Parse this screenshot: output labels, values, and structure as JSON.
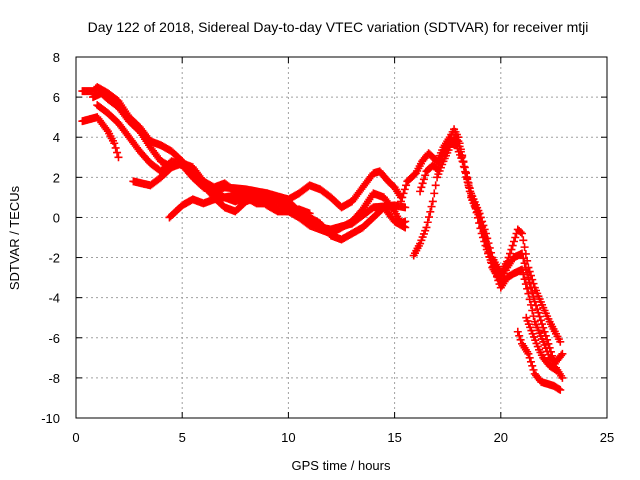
{
  "chart_data": {
    "type": "scatter",
    "title": "Day 122 of 2018, Sidereal Day-to-day VTEC variation (SDTVAR) for receiver mtji",
    "xlabel": "GPS time / hours",
    "ylabel": "SDTVAR / TECUs",
    "xlim": [
      0,
      25
    ],
    "ylim": [
      -10,
      8
    ],
    "xticks": [
      0,
      5,
      10,
      15,
      20,
      25
    ],
    "yticks": [
      -10,
      -8,
      -6,
      -4,
      -2,
      0,
      2,
      4,
      6,
      8
    ],
    "grid": true,
    "marker": "+",
    "colors": {
      "series": "#ff0000",
      "grid": "#a0a0a0",
      "axes": "#000000"
    },
    "series": [
      {
        "name": "track-1",
        "x": [
          0.3,
          0.8,
          1.0,
          1.5,
          2.0,
          2.5,
          3.0,
          3.5,
          4.0,
          4.5,
          5.0,
          5.5,
          6.0,
          7.0,
          8.0,
          9.0,
          10.0,
          10.5,
          11.0,
          11.5,
          12.0,
          13.0,
          14.0,
          15.0,
          15.5
        ],
        "y": [
          6.3,
          6.3,
          6.5,
          6.2,
          5.8,
          5.0,
          4.5,
          3.8,
          3.6,
          3.3,
          2.8,
          2.0,
          1.5,
          1.0,
          1.2,
          1.0,
          0.5,
          0.3,
          0.0,
          -0.5,
          -0.6,
          -0.3,
          0.5,
          0.6,
          0.5
        ]
      },
      {
        "name": "track-2",
        "x": [
          0.3,
          1.0,
          1.5,
          1.8,
          2.0
        ],
        "y": [
          4.8,
          5.0,
          4.3,
          3.7,
          3.0
        ]
      },
      {
        "name": "track-3",
        "x": [
          0.8,
          1.2,
          1.5,
          2.0,
          2.5,
          3.0,
          3.5,
          4.0,
          4.5,
          5.0,
          5.5,
          6.0,
          6.5,
          7.0,
          8.0,
          9.0,
          10.0,
          10.5,
          11.0,
          11.5,
          12.0,
          12.5,
          13.0,
          13.5,
          14.0,
          14.5,
          15.0,
          15.5
        ],
        "y": [
          6.0,
          6.2,
          5.9,
          5.5,
          4.8,
          4.3,
          3.5,
          2.8,
          2.5,
          2.7,
          2.5,
          1.8,
          1.3,
          1.5,
          1.4,
          1.2,
          0.8,
          0.3,
          0.0,
          -0.3,
          -0.9,
          -1.1,
          -0.8,
          -0.5,
          0.0,
          0.5,
          -0.2,
          -0.5
        ]
      },
      {
        "name": "track-4",
        "x": [
          1.0,
          1.5,
          2.0,
          2.5,
          3.0,
          3.5,
          4.0,
          4.5,
          5.0,
          5.5,
          6.0,
          6.5,
          7.0,
          7.5,
          8.0,
          8.5,
          9.0,
          9.5,
          10.0,
          10.5,
          11.0,
          11.5,
          12.0,
          12.5,
          13.0,
          13.5,
          14.0,
          14.5,
          15.0,
          15.3,
          15.5
        ],
        "y": [
          5.6,
          5.2,
          4.7,
          4.0,
          3.3,
          2.7,
          2.3,
          2.8,
          2.6,
          2.0,
          1.6,
          1.0,
          0.5,
          0.3,
          0.8,
          1.0,
          0.6,
          0.3,
          0.3,
          0.0,
          -0.4,
          -0.6,
          -0.8,
          -0.5,
          -0.2,
          0.4,
          1.2,
          1.0,
          0.3,
          -0.3,
          -0.2
        ]
      },
      {
        "name": "track-5",
        "x": [
          2.7,
          3.5,
          4.0,
          4.5,
          5.0,
          5.5,
          6.0,
          6.5,
          7.0,
          7.5,
          8.0,
          9.0,
          10.0,
          10.5,
          11.0,
          11.5,
          12.0,
          12.5,
          13.0,
          13.5,
          14.0,
          14.3,
          14.7,
          15.0,
          15.3
        ],
        "y": [
          1.8,
          1.6,
          2.0,
          2.5,
          2.8,
          2.2,
          1.8,
          1.5,
          1.7,
          1.3,
          1.0,
          1.2,
          0.9,
          1.2,
          1.6,
          1.4,
          1.0,
          0.5,
          0.8,
          1.5,
          2.2,
          2.3,
          1.8,
          1.5,
          1.0
        ]
      },
      {
        "name": "track-6",
        "x": [
          4.4,
          5.0,
          5.5,
          6.0,
          6.5,
          7.0,
          7.5,
          8.0,
          8.5,
          9.0,
          9.5,
          10.0,
          10.5,
          11.0
        ],
        "y": [
          0.0,
          0.6,
          0.9,
          0.7,
          0.9,
          1.0,
          0.8,
          1.0,
          0.7,
          0.7,
          0.4,
          0.3,
          0.4,
          0.2
        ]
      },
      {
        "name": "track-7",
        "x": [
          15.3,
          15.6,
          16.0,
          16.3,
          16.6,
          17.0,
          17.3,
          17.6,
          17.8,
          18.0,
          18.3,
          18.6,
          19.0,
          19.3,
          19.6,
          20.0,
          20.3,
          20.5,
          20.8,
          21.0,
          21.3,
          21.6,
          22.0,
          22.3,
          22.6,
          22.8
        ],
        "y": [
          0.8,
          1.8,
          2.2,
          2.8,
          3.2,
          2.8,
          3.5,
          4.0,
          4.4,
          4.0,
          2.5,
          1.2,
          0.2,
          -0.8,
          -2.0,
          -2.8,
          -2.2,
          -1.6,
          -0.6,
          -0.8,
          -2.5,
          -3.5,
          -4.5,
          -5.2,
          -5.8,
          -6.2
        ]
      },
      {
        "name": "track-8",
        "x": [
          15.9,
          16.2,
          16.5,
          16.8,
          17.0,
          17.3,
          17.6,
          17.8,
          18.0,
          18.3,
          18.6,
          19.0,
          19.3,
          19.6,
          20.0,
          20.3,
          20.6,
          21.0,
          21.3,
          21.6,
          22.0,
          22.3,
          22.6,
          22.9
        ],
        "y": [
          -1.9,
          -1.3,
          -0.5,
          0.8,
          2.0,
          2.8,
          3.5,
          4.0,
          3.8,
          2.5,
          1.0,
          0.0,
          -1.2,
          -2.5,
          -3.2,
          -2.5,
          -2.0,
          -1.8,
          -3.0,
          -4.2,
          -5.5,
          -6.5,
          -7.5,
          -8.0
        ]
      },
      {
        "name": "track-9",
        "x": [
          16.2,
          16.5,
          16.8,
          17.0,
          17.3,
          17.6,
          17.9,
          18.2,
          18.5,
          18.8,
          19.1,
          19.4,
          19.7,
          20.0,
          20.3,
          20.6,
          21.0,
          21.3,
          21.6,
          22.0,
          22.3,
          22.6,
          22.9
        ],
        "y": [
          1.3,
          2.3,
          2.6,
          2.4,
          3.2,
          3.8,
          3.6,
          2.8,
          1.5,
          0.5,
          -0.8,
          -1.8,
          -2.6,
          -3.5,
          -3.0,
          -2.8,
          -2.6,
          -3.8,
          -5.2,
          -6.2,
          -7.0,
          -7.2,
          -6.8
        ]
      },
      {
        "name": "track-10",
        "x": [
          20.8,
          21.0,
          21.3,
          21.6,
          21.9,
          22.2,
          22.5,
          22.8
        ],
        "y": [
          -5.7,
          -6.3,
          -6.8,
          -7.8,
          -8.2,
          -8.3,
          -8.4,
          -8.6
        ]
      },
      {
        "name": "track-11",
        "x": [
          21.2,
          21.5,
          21.8,
          22.0,
          22.3,
          22.6
        ],
        "y": [
          -5.0,
          -5.8,
          -6.6,
          -7.0,
          -7.4,
          -7.6
        ]
      }
    ]
  }
}
